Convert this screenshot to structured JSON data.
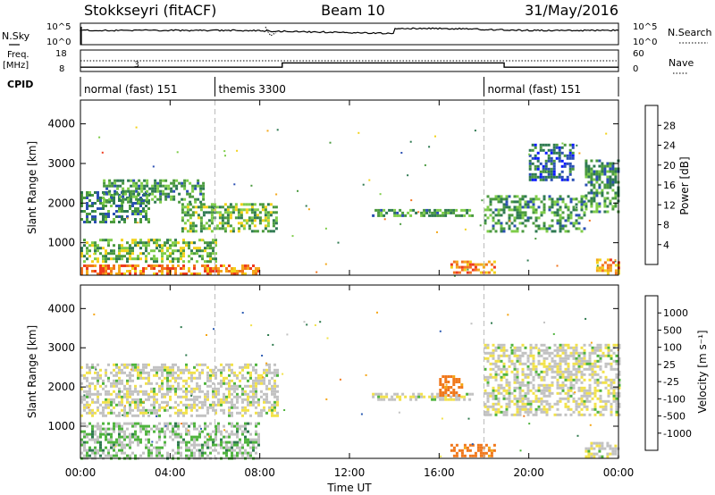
{
  "header": {
    "station": "Stokkseyri (fitACF)",
    "beam": "Beam 10",
    "date": "31/May/2016"
  },
  "top_panel": {
    "nsky_label": "N.Sky",
    "nsky_tick_high": "10^5",
    "nsky_tick_low": "10^0",
    "nsearch_label": "N.Search",
    "nsearch_tick_high": "10^5",
    "nsearch_tick_low": "10^0",
    "freq_label": "Freq.",
    "freq_unit": "[MHz]",
    "freq_tick_high": "18",
    "freq_tick_low": "8",
    "nave_label": "Nave",
    "nave_tick_high": "60",
    "nave_tick_low": "0",
    "cpid_label": "CPID"
  },
  "cpid_segments": [
    {
      "start_hour": 0,
      "end_hour": 6,
      "label": "normal (fast) 151"
    },
    {
      "start_hour": 6,
      "end_hour": 18,
      "label": "themis 3300"
    },
    {
      "start_hour": 18,
      "end_hour": 24,
      "label": "normal (fast) 151"
    }
  ],
  "frequency_trace": {
    "step_hours": [
      0,
      9,
      18.9,
      24
    ],
    "freq_mhz": [
      10,
      12,
      10,
      10
    ]
  },
  "power_panel": {
    "ylabel": "Slant Range [km]",
    "yticks": [
      "1000",
      "2000",
      "3000",
      "4000"
    ],
    "colorbar_label": "Power [dB]",
    "colorbar_ticks": [
      "4",
      "8",
      "12",
      "16",
      "20",
      "24",
      "28"
    ]
  },
  "velocity_panel": {
    "ylabel": "Slant Range [km]",
    "yticks": [
      "1000",
      "2000",
      "3000",
      "4000"
    ],
    "colorbar_label": "Velocity [m s⁻¹]",
    "colorbar_ticks": [
      "1000",
      "500",
      "100",
      "25",
      "-25",
      "-100",
      "-500",
      "-1000"
    ]
  },
  "xaxis": {
    "label": "Time UT",
    "ticks": [
      "00:00",
      "04:00",
      "08:00",
      "12:00",
      "16:00",
      "20:00",
      "00:00"
    ]
  },
  "colors": {
    "power_scale": [
      "#0a1aff",
      "#2b4fb3",
      "#2f7a52",
      "#4b9a3f",
      "#7fcd4a",
      "#f2d21a",
      "#f4a81c",
      "#f2741e",
      "#ee3a1e",
      "#dd0000"
    ],
    "velocity_scale": [
      "#1a28ff",
      "#2d5cb3",
      "#2e7a4e",
      "#4fb43e",
      "#c2c2c2",
      "#f2e24a",
      "#f5a616",
      "#f0781c",
      "#e8281c"
    ]
  },
  "chart_data": {
    "type": "heatmap",
    "title": "Stokkseyri (fitACF)  Beam 10  31/May/2016",
    "xlabel": "Time UT",
    "ylabel": "Slant Range [km]",
    "xlim_hours": [
      0,
      24
    ],
    "ylim_km": [
      180,
      4600
    ],
    "power_range_db": [
      0,
      30
    ],
    "velocity_range_ms": [
      -1000,
      1000
    ],
    "power_echo_regions": [
      {
        "start_hour": 0.0,
        "end_hour": 3.0,
        "range_low_km": 1550,
        "range_high_km": 2300,
        "power_db": 8
      },
      {
        "start_hour": 1.0,
        "end_hour": 5.5,
        "range_low_km": 2000,
        "range_high_km": 2600,
        "power_db": 10
      },
      {
        "start_hour": 4.5,
        "end_hour": 8.8,
        "range_low_km": 1300,
        "range_high_km": 2000,
        "power_db": 12
      },
      {
        "start_hour": 0.0,
        "end_hour": 8.0,
        "range_low_km": 200,
        "range_high_km": 450,
        "power_db": 22
      },
      {
        "start_hour": 0.0,
        "end_hour": 6.0,
        "range_low_km": 500,
        "range_high_km": 1100,
        "power_db": 12
      },
      {
        "start_hour": 13.0,
        "end_hour": 17.5,
        "range_low_km": 1650,
        "range_high_km": 1850,
        "power_db": 10
      },
      {
        "start_hour": 16.5,
        "end_hour": 18.5,
        "range_low_km": 250,
        "range_high_km": 550,
        "power_db": 22
      },
      {
        "start_hour": 18.0,
        "end_hour": 22.5,
        "range_low_km": 1300,
        "range_high_km": 2200,
        "power_db": 10
      },
      {
        "start_hour": 22.5,
        "end_hour": 24.0,
        "range_low_km": 1800,
        "range_high_km": 3100,
        "power_db": 9
      },
      {
        "start_hour": 20.0,
        "end_hour": 22.0,
        "range_low_km": 2600,
        "range_high_km": 3500,
        "power_db": 6
      },
      {
        "start_hour": 23.0,
        "end_hour": 24.0,
        "range_low_km": 200,
        "range_high_km": 600,
        "power_db": 20
      }
    ],
    "velocity_echo_regions": [
      {
        "start_hour": 0.0,
        "end_hour": 8.8,
        "range_low_km": 1300,
        "range_high_km": 2600,
        "velocity_ms": 0
      },
      {
        "start_hour": 0.0,
        "end_hour": 8.0,
        "range_low_km": 200,
        "range_high_km": 1100,
        "velocity_ms": 50
      },
      {
        "start_hour": 13.0,
        "end_hour": 17.5,
        "range_low_km": 1650,
        "range_high_km": 1850,
        "velocity_ms": 0
      },
      {
        "start_hour": 16.0,
        "end_hour": 17.0,
        "range_low_km": 1800,
        "range_high_km": 2300,
        "velocity_ms": -300
      },
      {
        "start_hour": 16.5,
        "end_hour": 18.5,
        "range_low_km": 250,
        "range_high_km": 550,
        "velocity_ms": -300
      },
      {
        "start_hour": 18.0,
        "end_hour": 24.0,
        "range_low_km": 1300,
        "range_high_km": 3100,
        "velocity_ms": 0
      },
      {
        "start_hour": 22.5,
        "end_hour": 24.0,
        "range_low_km": 200,
        "range_high_km": 600,
        "velocity_ms": 0
      }
    ]
  }
}
